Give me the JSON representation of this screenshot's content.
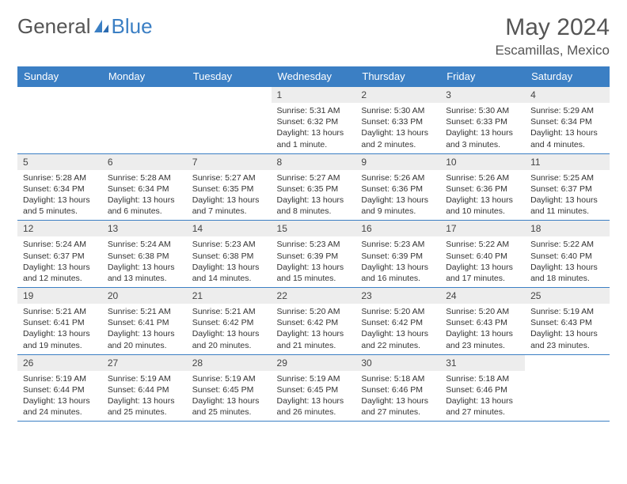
{
  "logo": {
    "part1": "General",
    "part2": "Blue"
  },
  "title": "May 2024",
  "location": "Escamillas, Mexico",
  "colors": {
    "accent": "#3b7fc4",
    "dayHeaderBg": "#ededed",
    "text": "#333"
  },
  "dayNames": [
    "Sunday",
    "Monday",
    "Tuesday",
    "Wednesday",
    "Thursday",
    "Friday",
    "Saturday"
  ],
  "weeks": [
    [
      null,
      null,
      null,
      {
        "n": "1",
        "sunrise": "5:31 AM",
        "sunset": "6:32 PM",
        "daylight": "13 hours and 1 minute."
      },
      {
        "n": "2",
        "sunrise": "5:30 AM",
        "sunset": "6:33 PM",
        "daylight": "13 hours and 2 minutes."
      },
      {
        "n": "3",
        "sunrise": "5:30 AM",
        "sunset": "6:33 PM",
        "daylight": "13 hours and 3 minutes."
      },
      {
        "n": "4",
        "sunrise": "5:29 AM",
        "sunset": "6:34 PM",
        "daylight": "13 hours and 4 minutes."
      }
    ],
    [
      {
        "n": "5",
        "sunrise": "5:28 AM",
        "sunset": "6:34 PM",
        "daylight": "13 hours and 5 minutes."
      },
      {
        "n": "6",
        "sunrise": "5:28 AM",
        "sunset": "6:34 PM",
        "daylight": "13 hours and 6 minutes."
      },
      {
        "n": "7",
        "sunrise": "5:27 AM",
        "sunset": "6:35 PM",
        "daylight": "13 hours and 7 minutes."
      },
      {
        "n": "8",
        "sunrise": "5:27 AM",
        "sunset": "6:35 PM",
        "daylight": "13 hours and 8 minutes."
      },
      {
        "n": "9",
        "sunrise": "5:26 AM",
        "sunset": "6:36 PM",
        "daylight": "13 hours and 9 minutes."
      },
      {
        "n": "10",
        "sunrise": "5:26 AM",
        "sunset": "6:36 PM",
        "daylight": "13 hours and 10 minutes."
      },
      {
        "n": "11",
        "sunrise": "5:25 AM",
        "sunset": "6:37 PM",
        "daylight": "13 hours and 11 minutes."
      }
    ],
    [
      {
        "n": "12",
        "sunrise": "5:24 AM",
        "sunset": "6:37 PM",
        "daylight": "13 hours and 12 minutes."
      },
      {
        "n": "13",
        "sunrise": "5:24 AM",
        "sunset": "6:38 PM",
        "daylight": "13 hours and 13 minutes."
      },
      {
        "n": "14",
        "sunrise": "5:23 AM",
        "sunset": "6:38 PM",
        "daylight": "13 hours and 14 minutes."
      },
      {
        "n": "15",
        "sunrise": "5:23 AM",
        "sunset": "6:39 PM",
        "daylight": "13 hours and 15 minutes."
      },
      {
        "n": "16",
        "sunrise": "5:23 AM",
        "sunset": "6:39 PM",
        "daylight": "13 hours and 16 minutes."
      },
      {
        "n": "17",
        "sunrise": "5:22 AM",
        "sunset": "6:40 PM",
        "daylight": "13 hours and 17 minutes."
      },
      {
        "n": "18",
        "sunrise": "5:22 AM",
        "sunset": "6:40 PM",
        "daylight": "13 hours and 18 minutes."
      }
    ],
    [
      {
        "n": "19",
        "sunrise": "5:21 AM",
        "sunset": "6:41 PM",
        "daylight": "13 hours and 19 minutes."
      },
      {
        "n": "20",
        "sunrise": "5:21 AM",
        "sunset": "6:41 PM",
        "daylight": "13 hours and 20 minutes."
      },
      {
        "n": "21",
        "sunrise": "5:21 AM",
        "sunset": "6:42 PM",
        "daylight": "13 hours and 20 minutes."
      },
      {
        "n": "22",
        "sunrise": "5:20 AM",
        "sunset": "6:42 PM",
        "daylight": "13 hours and 21 minutes."
      },
      {
        "n": "23",
        "sunrise": "5:20 AM",
        "sunset": "6:42 PM",
        "daylight": "13 hours and 22 minutes."
      },
      {
        "n": "24",
        "sunrise": "5:20 AM",
        "sunset": "6:43 PM",
        "daylight": "13 hours and 23 minutes."
      },
      {
        "n": "25",
        "sunrise": "5:19 AM",
        "sunset": "6:43 PM",
        "daylight": "13 hours and 23 minutes."
      }
    ],
    [
      {
        "n": "26",
        "sunrise": "5:19 AM",
        "sunset": "6:44 PM",
        "daylight": "13 hours and 24 minutes."
      },
      {
        "n": "27",
        "sunrise": "5:19 AM",
        "sunset": "6:44 PM",
        "daylight": "13 hours and 25 minutes."
      },
      {
        "n": "28",
        "sunrise": "5:19 AM",
        "sunset": "6:45 PM",
        "daylight": "13 hours and 25 minutes."
      },
      {
        "n": "29",
        "sunrise": "5:19 AM",
        "sunset": "6:45 PM",
        "daylight": "13 hours and 26 minutes."
      },
      {
        "n": "30",
        "sunrise": "5:18 AM",
        "sunset": "6:46 PM",
        "daylight": "13 hours and 27 minutes."
      },
      {
        "n": "31",
        "sunrise": "5:18 AM",
        "sunset": "6:46 PM",
        "daylight": "13 hours and 27 minutes."
      },
      null
    ]
  ]
}
